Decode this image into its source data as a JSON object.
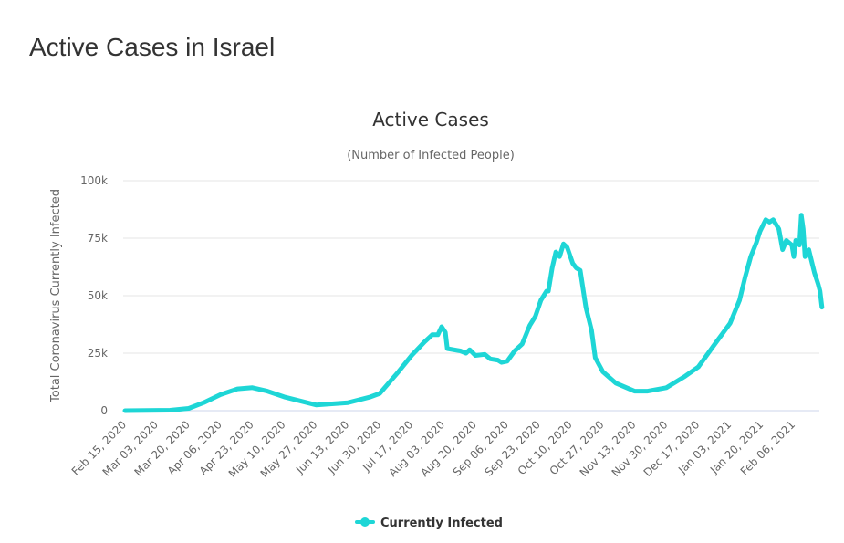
{
  "page": {
    "title": "Active Cases in Israel"
  },
  "chart_data": {
    "type": "line",
    "title": "Active Cases",
    "subtitle": "(Number of Infected People)",
    "ylabel": "Total Coronavirus Currently Infected",
    "xlabel": "",
    "ylim": [
      0,
      100000
    ],
    "yticks": [
      0,
      25000,
      50000,
      75000,
      100000
    ],
    "ytick_labels": [
      "0",
      "25k",
      "50k",
      "75k",
      "100k"
    ],
    "xtick_labels": [
      "Feb 15, 2020",
      "Mar 03, 2020",
      "Mar 20, 2020",
      "Apr 06, 2020",
      "Apr 23, 2020",
      "May 10, 2020",
      "May 27, 2020",
      "Jun 13, 2020",
      "Jun 30, 2020",
      "Jul 17, 2020",
      "Aug 03, 2020",
      "Aug 20, 2020",
      "Sep 06, 2020",
      "Sep 23, 2020",
      "Oct 10, 2020",
      "Oct 27, 2020",
      "Nov 13, 2020",
      "Nov 30, 2020",
      "Dec 17, 2020",
      "Jan 03, 2021",
      "Jan 20, 2021",
      "Feb 06, 2021"
    ],
    "grid": true,
    "legend_position": "bottom",
    "series": [
      {
        "name": "Currently Infected",
        "color": "#1ed6d6",
        "points": [
          [
            "2020-02-15",
            0
          ],
          [
            "2020-03-10",
            200
          ],
          [
            "2020-03-20",
            1000
          ],
          [
            "2020-03-28",
            3500
          ],
          [
            "2020-04-06",
            7000
          ],
          [
            "2020-04-15",
            9500
          ],
          [
            "2020-04-23",
            10000
          ],
          [
            "2020-05-01",
            8500
          ],
          [
            "2020-05-10",
            6000
          ],
          [
            "2020-05-27",
            2500
          ],
          [
            "2020-06-13",
            3500
          ],
          [
            "2020-06-25",
            6000
          ],
          [
            "2020-06-30",
            7500
          ],
          [
            "2020-07-10",
            17000
          ],
          [
            "2020-07-17",
            24000
          ],
          [
            "2020-07-24",
            30000
          ],
          [
            "2020-07-28",
            33000
          ],
          [
            "2020-07-31",
            33000
          ],
          [
            "2020-08-02",
            36500
          ],
          [
            "2020-08-04",
            34000
          ],
          [
            "2020-08-05",
            27000
          ],
          [
            "2020-08-12",
            26000
          ],
          [
            "2020-08-15",
            25000
          ],
          [
            "2020-08-17",
            26500
          ],
          [
            "2020-08-20",
            24000
          ],
          [
            "2020-08-25",
            24500
          ],
          [
            "2020-08-28",
            22500
          ],
          [
            "2020-09-01",
            22000
          ],
          [
            "2020-09-03",
            21000
          ],
          [
            "2020-09-06",
            21500
          ],
          [
            "2020-09-10",
            26000
          ],
          [
            "2020-09-14",
            29000
          ],
          [
            "2020-09-18",
            37000
          ],
          [
            "2020-09-21",
            41000
          ],
          [
            "2020-09-24",
            48000
          ],
          [
            "2020-09-27",
            52000
          ],
          [
            "2020-09-28",
            52000
          ],
          [
            "2020-09-30",
            62000
          ],
          [
            "2020-10-02",
            69000
          ],
          [
            "2020-10-04",
            67000
          ],
          [
            "2020-10-06",
            72500
          ],
          [
            "2020-10-08",
            71000
          ],
          [
            "2020-10-11",
            64000
          ],
          [
            "2020-10-13",
            62000
          ],
          [
            "2020-10-15",
            61000
          ],
          [
            "2020-10-18",
            45000
          ],
          [
            "2020-10-21",
            35000
          ],
          [
            "2020-10-23",
            23000
          ],
          [
            "2020-10-27",
            17000
          ],
          [
            "2020-11-03",
            12000
          ],
          [
            "2020-11-13",
            8500
          ],
          [
            "2020-11-20",
            8500
          ],
          [
            "2020-11-30",
            10000
          ],
          [
            "2020-12-10",
            15000
          ],
          [
            "2020-12-17",
            19000
          ],
          [
            "2020-12-25",
            28000
          ],
          [
            "2021-01-03",
            38000
          ],
          [
            "2021-01-08",
            48000
          ],
          [
            "2021-01-11",
            58000
          ],
          [
            "2021-01-14",
            67000
          ],
          [
            "2021-01-17",
            73000
          ],
          [
            "2021-01-19",
            78000
          ],
          [
            "2021-01-22",
            83000
          ],
          [
            "2021-01-24",
            82000
          ],
          [
            "2021-01-26",
            83000
          ],
          [
            "2021-01-29",
            79000
          ],
          [
            "2021-01-31",
            70000
          ],
          [
            "2021-02-02",
            74000
          ],
          [
            "2021-02-05",
            72000
          ],
          [
            "2021-02-06",
            67000
          ],
          [
            "2021-02-07",
            74000
          ],
          [
            "2021-02-09",
            72000
          ],
          [
            "2021-02-10",
            85000
          ],
          [
            "2021-02-11",
            79000
          ],
          [
            "2021-02-12",
            67000
          ],
          [
            "2021-02-14",
            70000
          ],
          [
            "2021-02-17",
            60000
          ],
          [
            "2021-02-19",
            55000
          ],
          [
            "2021-02-20",
            52000
          ],
          [
            "2021-02-21",
            45000
          ]
        ]
      }
    ]
  }
}
